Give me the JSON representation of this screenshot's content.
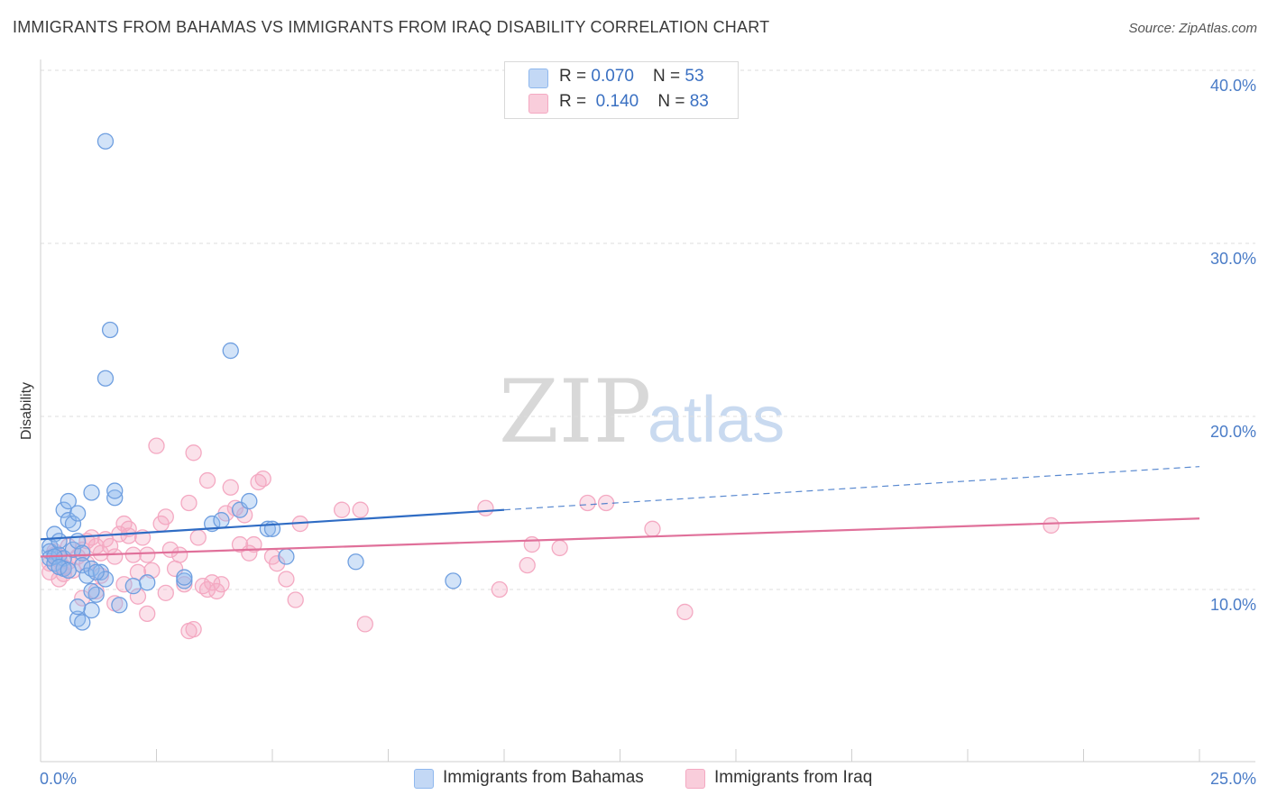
{
  "title": "IMMIGRANTS FROM BAHAMAS VS IMMIGRANTS FROM IRAQ DISABILITY CORRELATION CHART",
  "source": "Source: ZipAtlas.com",
  "watermark": {
    "zip": "ZIP",
    "atlas": "atlas"
  },
  "legend": {
    "bahamas": {
      "r_label": "R = ",
      "r_value": "0.070",
      "n_label": "N = ",
      "n_value": "53"
    },
    "iraq": {
      "r_label": "R = ",
      "r_value": "0.140",
      "n_label": "N = ",
      "n_value": "83"
    }
  },
  "chart_data": {
    "type": "scatter",
    "title": "IMMIGRANTS FROM BAHAMAS VS IMMIGRANTS FROM IRAQ DISABILITY CORRELATION CHART",
    "xlabel": "",
    "ylabel": "Disability",
    "xlim": [
      0,
      25
    ],
    "ylim": [
      0,
      41
    ],
    "x_tick_labels": [
      "0.0%",
      "25.0%"
    ],
    "y_ticks": [
      10,
      20,
      30,
      40
    ],
    "y_tick_labels": [
      "10.0%",
      "20.0%",
      "30.0%",
      "40.0%"
    ],
    "colors": {
      "bahamas": "#8fb8ee",
      "bahamas_line": "#2f6cc4",
      "iraq": "#f4a9c2",
      "iraq_line": "#e0709a"
    },
    "series": [
      {
        "name": "Immigrants from Bahamas",
        "trend": {
          "x0": 0,
          "y0": 12.9,
          "x1": 10,
          "y1": 14.6,
          "dashed_to_x": 25,
          "dashed_to_y": 17.1
        },
        "points": [
          [
            1.4,
            35.9
          ],
          [
            1.5,
            25.0
          ],
          [
            1.4,
            22.2
          ],
          [
            4.1,
            23.8
          ],
          [
            0.2,
            12.5
          ],
          [
            0.2,
            12.2
          ],
          [
            0.2,
            11.8
          ],
          [
            0.3,
            13.2
          ],
          [
            0.3,
            11.5
          ],
          [
            0.4,
            12.8
          ],
          [
            0.4,
            12.0
          ],
          [
            0.5,
            14.6
          ],
          [
            0.5,
            11.8
          ],
          [
            0.5,
            11.2
          ],
          [
            0.6,
            14.0
          ],
          [
            0.6,
            15.1
          ],
          [
            0.7,
            13.8
          ],
          [
            0.7,
            12.3
          ],
          [
            0.8,
            14.4
          ],
          [
            0.8,
            12.8
          ],
          [
            0.9,
            12.1
          ],
          [
            0.9,
            11.4
          ],
          [
            1.0,
            10.8
          ],
          [
            1.1,
            11.2
          ],
          [
            1.1,
            15.6
          ],
          [
            1.2,
            9.7
          ],
          [
            1.3,
            11.0
          ],
          [
            1.4,
            10.6
          ],
          [
            1.6,
            15.3
          ],
          [
            1.6,
            15.7
          ],
          [
            0.8,
            8.3
          ],
          [
            0.9,
            8.1
          ],
          [
            1.1,
            8.8
          ],
          [
            0.8,
            9.0
          ],
          [
            1.1,
            9.9
          ],
          [
            2.0,
            10.2
          ],
          [
            2.3,
            10.4
          ],
          [
            3.1,
            10.5
          ],
          [
            3.1,
            10.7
          ],
          [
            1.7,
            9.1
          ],
          [
            3.7,
            13.8
          ],
          [
            3.9,
            14.0
          ],
          [
            4.3,
            14.6
          ],
          [
            4.5,
            15.1
          ],
          [
            4.9,
            13.5
          ],
          [
            5.0,
            13.5
          ],
          [
            5.3,
            11.9
          ],
          [
            6.8,
            11.6
          ],
          [
            8.9,
            10.5
          ],
          [
            0.3,
            11.9
          ],
          [
            0.4,
            11.3
          ],
          [
            0.6,
            11.1
          ],
          [
            1.2,
            11.0
          ]
        ]
      },
      {
        "name": "Immigrants from Iraq",
        "trend": {
          "x0": 0,
          "y0": 11.9,
          "x1": 25,
          "y1": 14.1
        },
        "points": [
          [
            0.2,
            11.5
          ],
          [
            0.2,
            11.0
          ],
          [
            0.3,
            12.2
          ],
          [
            0.4,
            11.8
          ],
          [
            0.4,
            10.6
          ],
          [
            0.5,
            11.3
          ],
          [
            0.6,
            12.5
          ],
          [
            0.7,
            11.1
          ],
          [
            0.8,
            11.9
          ],
          [
            0.9,
            12.3
          ],
          [
            1.0,
            11.5
          ],
          [
            1.1,
            13.0
          ],
          [
            1.2,
            12.5
          ],
          [
            1.3,
            10.8
          ],
          [
            1.4,
            12.9
          ],
          [
            1.5,
            12.5
          ],
          [
            1.6,
            11.9
          ],
          [
            1.7,
            13.2
          ],
          [
            1.8,
            13.8
          ],
          [
            1.9,
            13.5
          ],
          [
            2.0,
            12.0
          ],
          [
            2.1,
            11.0
          ],
          [
            2.2,
            13.0
          ],
          [
            2.3,
            12.0
          ],
          [
            2.5,
            18.3
          ],
          [
            2.6,
            13.8
          ],
          [
            2.7,
            14.2
          ],
          [
            2.8,
            12.3
          ],
          [
            2.9,
            11.2
          ],
          [
            3.0,
            12.0
          ],
          [
            3.1,
            10.3
          ],
          [
            3.2,
            15.0
          ],
          [
            3.3,
            17.9
          ],
          [
            3.4,
            13.0
          ],
          [
            3.5,
            10.2
          ],
          [
            3.6,
            16.3
          ],
          [
            3.7,
            10.4
          ],
          [
            3.8,
            9.9
          ],
          [
            3.9,
            10.3
          ],
          [
            4.0,
            14.4
          ],
          [
            4.1,
            15.9
          ],
          [
            4.2,
            14.7
          ],
          [
            4.3,
            12.6
          ],
          [
            4.4,
            14.3
          ],
          [
            4.5,
            12.1
          ],
          [
            4.6,
            12.6
          ],
          [
            4.7,
            16.2
          ],
          [
            4.8,
            16.4
          ],
          [
            5.0,
            11.9
          ],
          [
            5.1,
            11.5
          ],
          [
            5.3,
            10.6
          ],
          [
            5.5,
            9.4
          ],
          [
            5.6,
            13.8
          ],
          [
            3.2,
            7.6
          ],
          [
            3.3,
            7.7
          ],
          [
            2.3,
            8.6
          ],
          [
            1.6,
            9.2
          ],
          [
            2.1,
            9.6
          ],
          [
            6.5,
            14.6
          ],
          [
            6.9,
            14.6
          ],
          [
            7.0,
            8.0
          ],
          [
            9.6,
            14.7
          ],
          [
            9.9,
            10.0
          ],
          [
            10.5,
            11.4
          ],
          [
            10.6,
            12.6
          ],
          [
            11.2,
            12.4
          ],
          [
            11.8,
            15.0
          ],
          [
            12.2,
            15.0
          ],
          [
            13.2,
            13.5
          ],
          [
            13.9,
            8.7
          ],
          [
            21.8,
            13.7
          ],
          [
            1.2,
            9.9
          ],
          [
            1.8,
            10.3
          ],
          [
            0.9,
            9.5
          ],
          [
            2.7,
            9.8
          ],
          [
            0.5,
            10.9
          ],
          [
            0.6,
            11.6
          ],
          [
            1.3,
            12.1
          ],
          [
            2.4,
            11.1
          ],
          [
            3.6,
            10.0
          ],
          [
            1.0,
            12.8
          ],
          [
            0.3,
            12.0
          ],
          [
            1.9,
            13.1
          ]
        ]
      }
    ]
  },
  "bottom_legend": {
    "bahamas": "Immigrants from Bahamas",
    "iraq": "Immigrants from Iraq"
  }
}
